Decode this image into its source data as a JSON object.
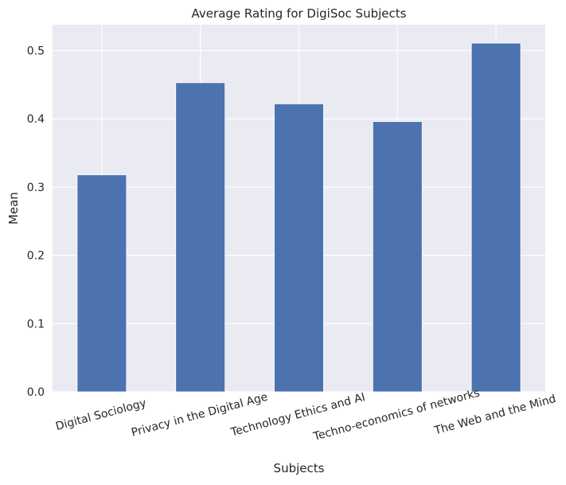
{
  "chart_data": {
    "type": "bar",
    "title": "Average Rating for DigiSoc Subjects",
    "xlabel": "Subjects",
    "ylabel": "Mean",
    "categories": [
      "Digital Sociology",
      "Privacy in the Digital Age",
      "Technology Ethics and AI",
      "Techno-economics of networks",
      "The Web and the Mind"
    ],
    "values": [
      0.318,
      0.453,
      0.422,
      0.396,
      0.511
    ],
    "ylim": [
      0,
      0.538
    ],
    "yticks": [
      0.0,
      0.1,
      0.2,
      0.3,
      0.4,
      0.5
    ],
    "ytick_labels": [
      "0.0",
      "0.1",
      "0.2",
      "0.3",
      "0.4",
      "0.5"
    ],
    "grid": true,
    "colors": {
      "bar": "#4c72b0",
      "background": "#eaeaf2",
      "grid": "#ffffff"
    }
  }
}
